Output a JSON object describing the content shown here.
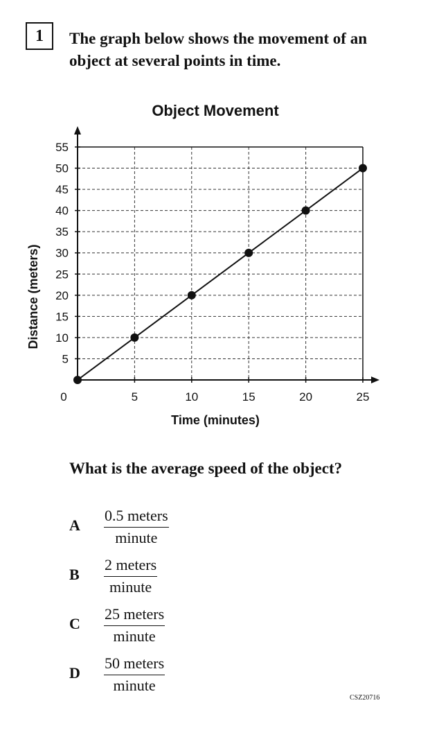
{
  "question": {
    "number": "1",
    "stem_lines": [
      "The graph below shows the movement of an",
      "object at several points in time."
    ],
    "prompt": "What is the average speed of the object?",
    "choices": [
      {
        "letter": "A",
        "numerator": "0.5 meters",
        "denominator": "minute"
      },
      {
        "letter": "B",
        "numerator": "2 meters",
        "denominator": "minute"
      },
      {
        "letter": "C",
        "numerator": "25 meters",
        "denominator": "minute"
      },
      {
        "letter": "D",
        "numerator": "50 meters",
        "denominator": "minute"
      }
    ],
    "item_code": "CSZ20716"
  },
  "chart_data": {
    "type": "line",
    "title": "Object Movement",
    "xlabel": "Time (minutes)",
    "ylabel": "Distance (meters)",
    "x": [
      0,
      5,
      10,
      15,
      20,
      25
    ],
    "series": [
      {
        "values": [
          0,
          10,
          20,
          30,
          40,
          50
        ]
      }
    ],
    "xlim": [
      0,
      25
    ],
    "ylim": [
      0,
      55
    ],
    "xticks": [
      0,
      5,
      10,
      15,
      20,
      25
    ],
    "yticks": [
      5,
      10,
      15,
      20,
      25,
      30,
      35,
      40,
      45,
      50,
      55
    ],
    "x_tick_labels": [
      "0",
      "5",
      "10",
      "15",
      "20",
      "25"
    ],
    "y_tick_labels": [
      "5",
      "10",
      "15",
      "20",
      "25",
      "30",
      "35",
      "40",
      "45",
      "50",
      "55"
    ],
    "grid": true,
    "grid_style": "dashed",
    "line_color": "#111111",
    "marker_color": "#111111"
  }
}
